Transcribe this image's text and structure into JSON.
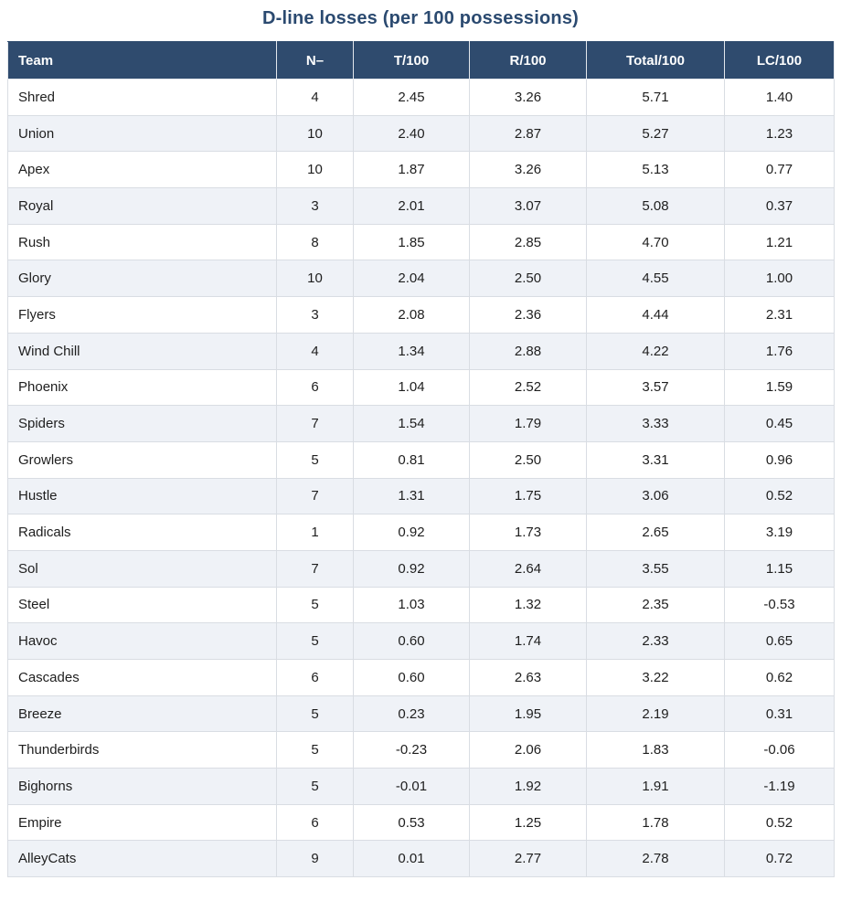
{
  "chart_data": {
    "type": "table",
    "title": "D-line losses (per 100 possessions)",
    "columns": [
      "Team",
      "N–",
      "T/100",
      "R/100",
      "Total/100",
      "LC/100"
    ],
    "rows": [
      [
        "Shred",
        "4",
        "2.45",
        "3.26",
        "5.71",
        "1.40"
      ],
      [
        "Union",
        "10",
        "2.40",
        "2.87",
        "5.27",
        "1.23"
      ],
      [
        "Apex",
        "10",
        "1.87",
        "3.26",
        "5.13",
        "0.77"
      ],
      [
        "Royal",
        "3",
        "2.01",
        "3.07",
        "5.08",
        "0.37"
      ],
      [
        "Rush",
        "8",
        "1.85",
        "2.85",
        "4.70",
        "1.21"
      ],
      [
        "Glory",
        "10",
        "2.04",
        "2.50",
        "4.55",
        "1.00"
      ],
      [
        "Flyers",
        "3",
        "2.08",
        "2.36",
        "4.44",
        "2.31"
      ],
      [
        "Wind Chill",
        "4",
        "1.34",
        "2.88",
        "4.22",
        "1.76"
      ],
      [
        "Phoenix",
        "6",
        "1.04",
        "2.52",
        "3.57",
        "1.59"
      ],
      [
        "Spiders",
        "7",
        "1.54",
        "1.79",
        "3.33",
        "0.45"
      ],
      [
        "Growlers",
        "5",
        "0.81",
        "2.50",
        "3.31",
        "0.96"
      ],
      [
        "Hustle",
        "7",
        "1.31",
        "1.75",
        "3.06",
        "0.52"
      ],
      [
        "Radicals",
        "1",
        "0.92",
        "1.73",
        "2.65",
        "3.19"
      ],
      [
        "Sol",
        "7",
        "0.92",
        "2.64",
        "3.55",
        "1.15"
      ],
      [
        "Steel",
        "5",
        "1.03",
        "1.32",
        "2.35",
        "-0.53"
      ],
      [
        "Havoc",
        "5",
        "0.60",
        "1.74",
        "2.33",
        "0.65"
      ],
      [
        "Cascades",
        "6",
        "0.60",
        "2.63",
        "3.22",
        "0.62"
      ],
      [
        "Breeze",
        "5",
        "0.23",
        "1.95",
        "2.19",
        "0.31"
      ],
      [
        "Thunderbirds",
        "5",
        "-0.23",
        "2.06",
        "1.83",
        "-0.06"
      ],
      [
        "Bighorns",
        "5",
        "-0.01",
        "1.92",
        "1.91",
        "-1.19"
      ],
      [
        "Empire",
        "6",
        "0.53",
        "1.25",
        "1.78",
        "0.52"
      ],
      [
        "AlleyCats",
        "9",
        "0.01",
        "2.77",
        "2.78",
        "0.72"
      ]
    ]
  },
  "colors": {
    "header_bg": "#2f4b6e",
    "stripe_bg": "#eff2f7",
    "title": "#2b4a70",
    "border": "#d9dde3"
  }
}
